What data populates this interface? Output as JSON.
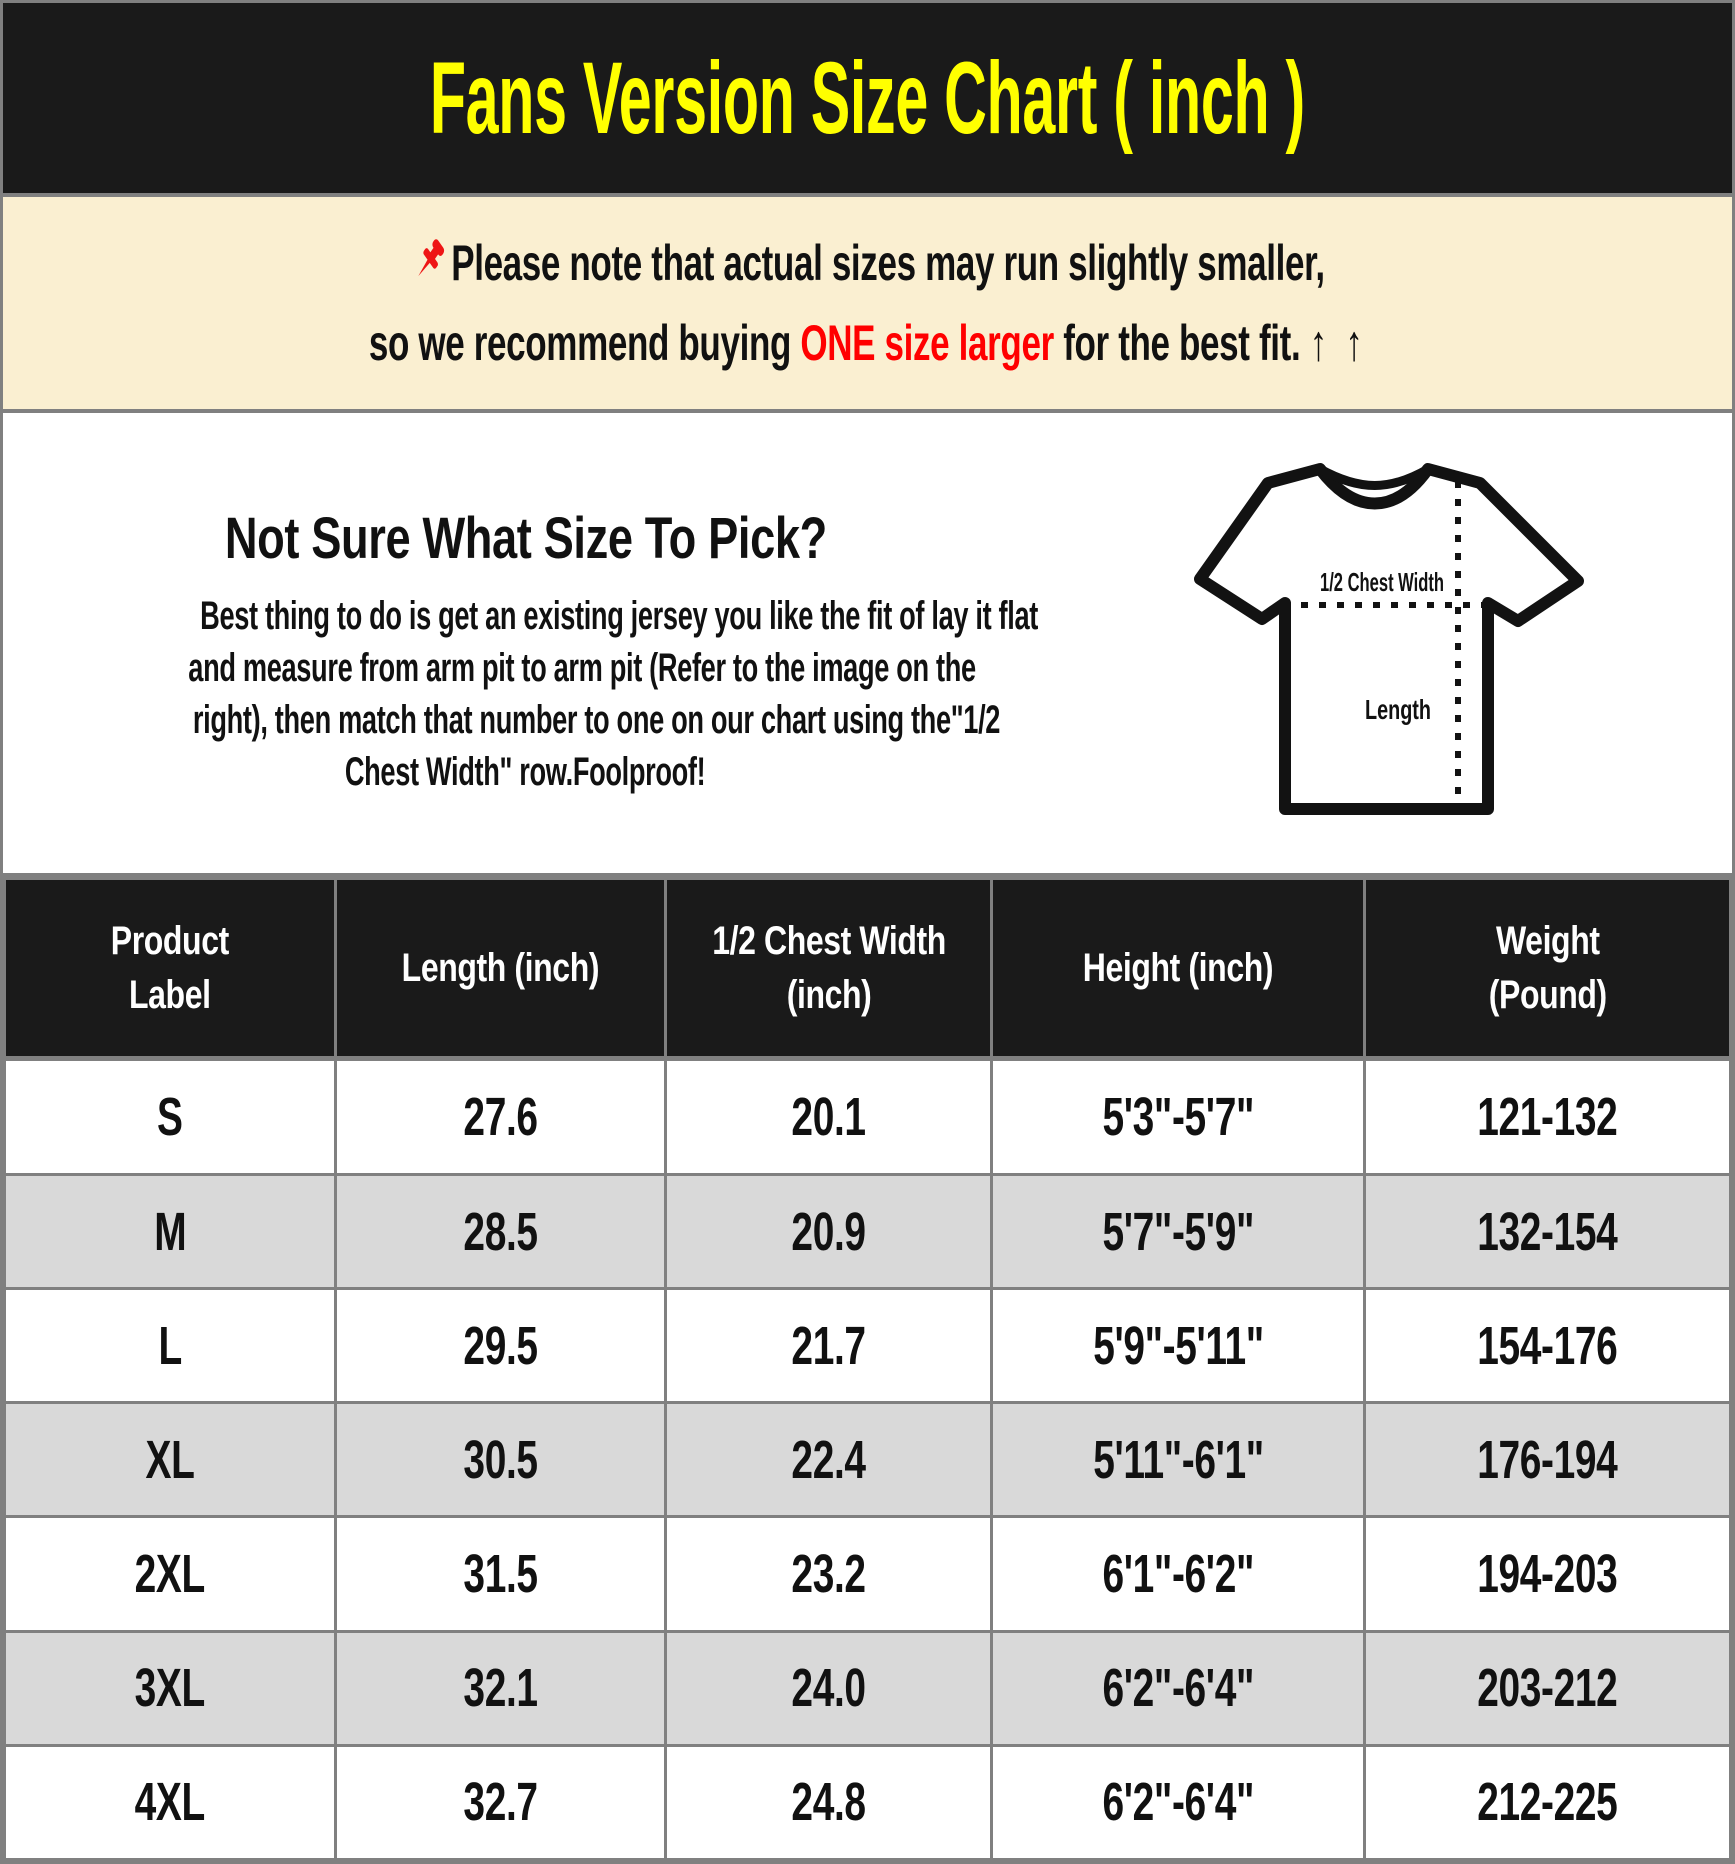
{
  "header": {
    "title": "Fans Version Size Chart ( inch )"
  },
  "notice": {
    "line1": "Please note that actual sizes may run slightly smaller,",
    "line2_pre": "so we recommend buying ",
    "line2_highlight": "ONE size larger",
    "line2_post": " for the best fit. ",
    "arrows": "↑ ↑"
  },
  "guide": {
    "heading": "Not Sure What Size To Pick?",
    "body_lines": [
      "Best thing to do is get an existing jersey you like the fit of lay it flat",
      "and measure from arm pit to arm pit (Refer to the image on the",
      "right), then match that number to one on our chart using the\"1/2",
      "Chest Width\" row.Foolproof!"
    ],
    "diagram": {
      "chest_label": "1/2 Chest Width",
      "length_label": "Length"
    }
  },
  "chart_data": {
    "type": "table",
    "title": "Fans Version Size Chart ( inch )",
    "columns": [
      "Product\nLabel",
      "Length (inch)",
      "1/2 Chest Width\n(inch)",
      "Height (inch)",
      "Weight\n(Pound)"
    ],
    "rows": [
      [
        "S",
        "27.6",
        "20.1",
        "5'3\"-5'7\"",
        "121-132"
      ],
      [
        "M",
        "28.5",
        "20.9",
        "5'7\"-5'9\"",
        "132-154"
      ],
      [
        "L",
        "29.5",
        "21.7",
        "5'9\"-5'11\"",
        "154-176"
      ],
      [
        "XL",
        "30.5",
        "22.4",
        "5'11\"-6'1\"",
        "176-194"
      ],
      [
        "2XL",
        "31.5",
        "23.2",
        "6'1\"-6'2\"",
        "194-203"
      ],
      [
        "3XL",
        "32.1",
        "24.0",
        "6'2\"-6'4\"",
        "203-212"
      ],
      [
        "4XL",
        "32.7",
        "24.8",
        "6'2\"-6'4\"",
        "212-225"
      ]
    ],
    "zebra_rows": true
  },
  "colors": {
    "banner_bg": "#1a1a1a",
    "title_yellow": "#ffff00",
    "notice_bg": "#faefd1",
    "highlight_red": "#ff0000",
    "border_gray": "#808080",
    "row_gray": "#d9d9d9"
  }
}
